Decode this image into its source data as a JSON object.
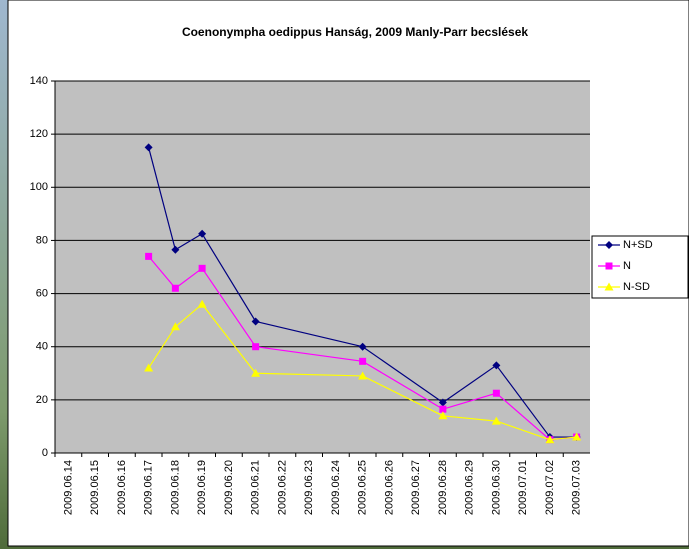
{
  "chart_data": {
    "type": "line",
    "title": "Coenonympha oedippus Hanság, 2009 Manly-Parr becslések",
    "categories": [
      "2009.06.14",
      "2009.06.15",
      "2009.06.16",
      "2009.06.17",
      "2009.06.18",
      "2009.06.19",
      "2009.06.20",
      "2009.06.21",
      "2009.06.22",
      "2009.06.23",
      "2009.06.24",
      "2009.06.25",
      "2009.06.26",
      "2009.06.27",
      "2009.06.28",
      "2009.06.29",
      "2009.06.30",
      "2009.07.01",
      "2009.07.02",
      "2009.07.03"
    ],
    "series": [
      {
        "name": "N+SD",
        "color": "#000080",
        "marker": "diamond",
        "values": [
          null,
          null,
          null,
          115,
          76.5,
          82.5,
          null,
          49.5,
          null,
          null,
          null,
          40,
          null,
          null,
          19,
          null,
          33,
          null,
          6,
          6
        ]
      },
      {
        "name": "N",
        "color": "#ff00ff",
        "marker": "square",
        "values": [
          null,
          null,
          null,
          74,
          62,
          69.5,
          null,
          40,
          null,
          null,
          null,
          34.5,
          null,
          null,
          16.5,
          null,
          22.5,
          null,
          5,
          6
        ]
      },
      {
        "name": "N-SD",
        "color": "#ffff00",
        "marker": "triangle",
        "values": [
          null,
          null,
          null,
          32,
          47.5,
          56,
          null,
          30,
          null,
          null,
          null,
          29,
          null,
          null,
          14,
          null,
          12,
          null,
          5,
          6
        ]
      }
    ],
    "ylim": [
      0,
      140
    ],
    "yticks": [
      0,
      20,
      40,
      60,
      80,
      100,
      120,
      140
    ],
    "grid": true,
    "legend": "right"
  }
}
